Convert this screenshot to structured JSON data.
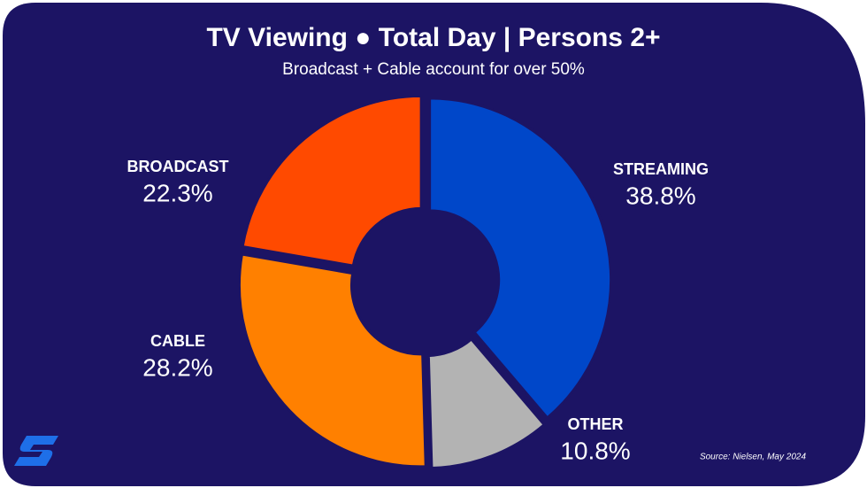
{
  "chart_data": {
    "type": "donut",
    "title": "TV Viewing  ●  Total Day | Persons 2+",
    "subtitle": "Broadcast + Cable account for over 50%",
    "source": "Source: Nielsen, May 2024",
    "categories": [
      "STREAMING",
      "OTHER",
      "CABLE",
      "BROADCAST"
    ],
    "values": [
      38.8,
      10.8,
      28.2,
      22.3
    ],
    "value_labels": [
      "38.8%",
      "10.8%",
      "28.2%",
      "22.3%"
    ],
    "colors": [
      "#0047c9",
      "#b3b3b3",
      "#ff8000",
      "#ff4a00"
    ]
  }
}
